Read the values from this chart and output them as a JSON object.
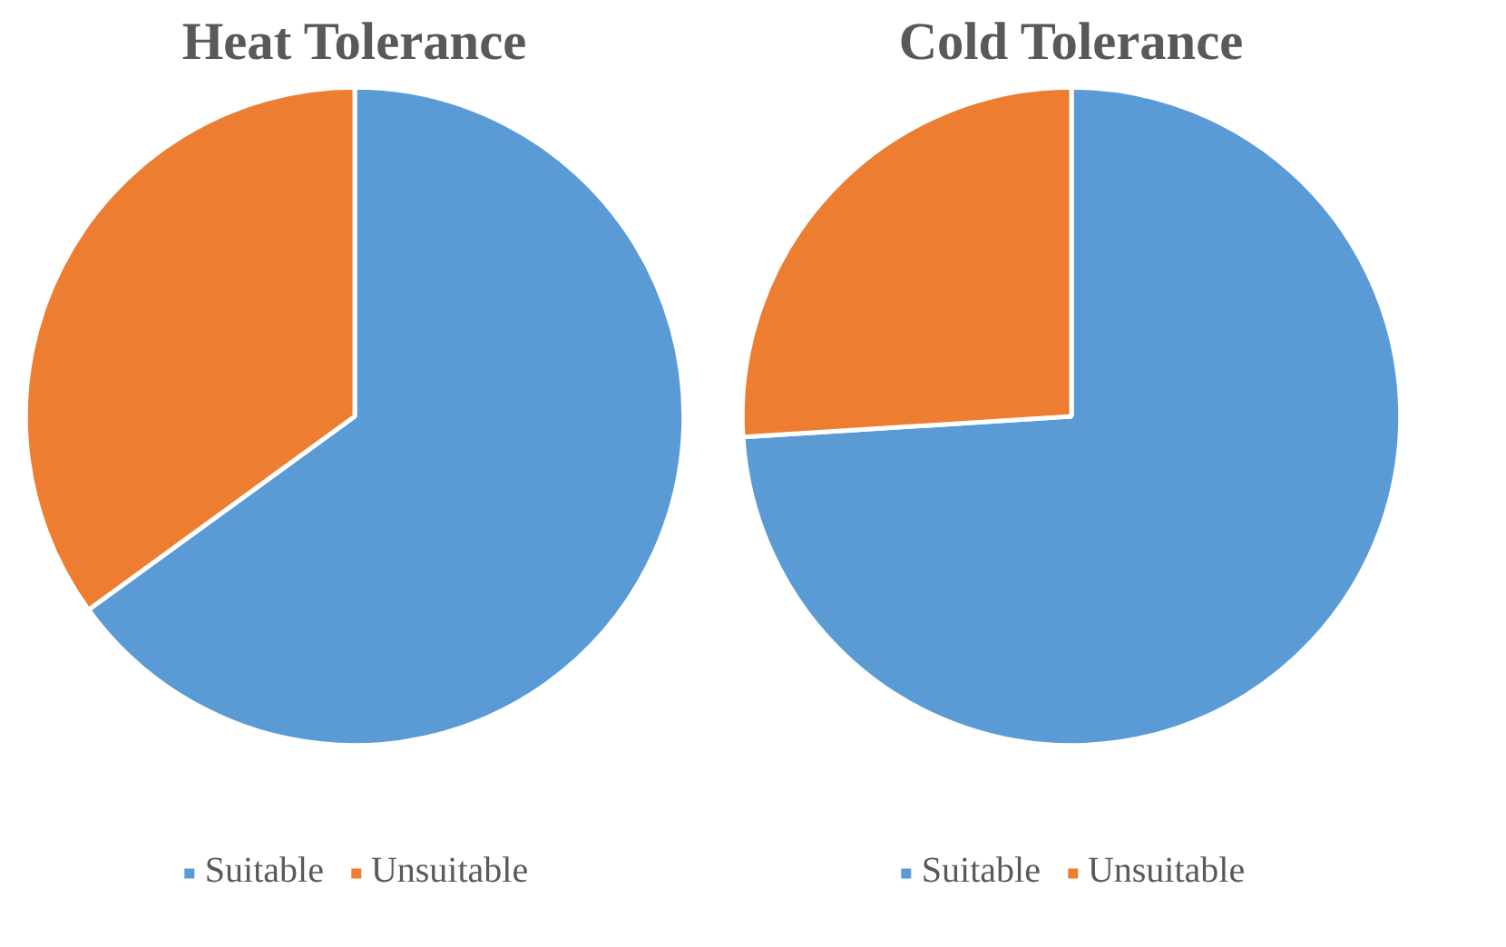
{
  "chart_data": [
    {
      "type": "pie",
      "title": "Heat Tolerance",
      "categories": [
        "Suitable",
        "Unsuitable"
      ],
      "values": [
        65,
        35
      ],
      "colors": [
        "#5b9bd5",
        "#ed7d31"
      ],
      "legend": "bottom"
    },
    {
      "type": "pie",
      "title": "Cold Tolerance",
      "categories": [
        "Suitable",
        "Unsuitable"
      ],
      "values": [
        74,
        26
      ],
      "colors": [
        "#5b9bd5",
        "#ed7d31"
      ],
      "legend": "bottom"
    }
  ]
}
